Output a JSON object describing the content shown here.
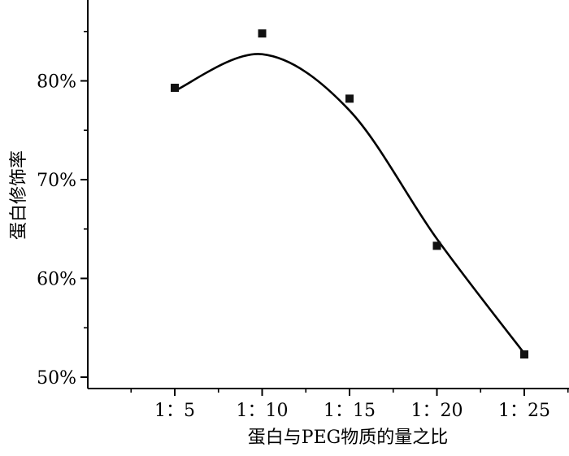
{
  "chart_data": {
    "type": "scatter",
    "title": "",
    "xlabel": "蛋白与PEG物质的量之比",
    "ylabel": "蛋白修饰率",
    "categories": [
      "1：5",
      "1：10",
      "1：15",
      "1：20",
      "1：25"
    ],
    "series": [
      {
        "values": [
          79.3,
          84.8,
          78.2,
          63.3,
          52.3
        ],
        "marker": "square",
        "fit_line": true
      }
    ],
    "y_ticks": [
      "50%",
      "60%",
      "70%",
      "80%"
    ],
    "y_tick_values": [
      50,
      60,
      70,
      80
    ],
    "ylim": [
      49.5,
      89
    ],
    "grid": false,
    "legend": "none",
    "colors": {
      "marker": "#111111",
      "line": "#000000",
      "axis": "#000000"
    }
  }
}
